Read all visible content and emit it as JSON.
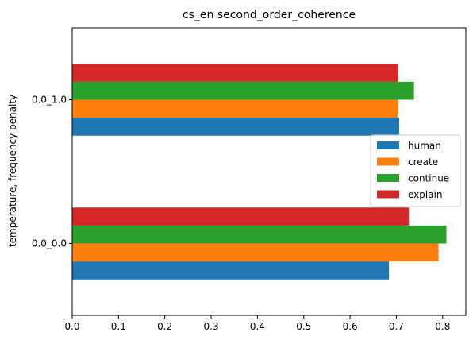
{
  "chart_data": {
    "type": "bar",
    "orientation": "horizontal",
    "title": "cs_en second_order_coherence",
    "xlabel": "",
    "ylabel": "temperature, frequency penalty",
    "categories": [
      "0.0_0.0",
      "0.0_1.0"
    ],
    "series": [
      {
        "name": "human",
        "color": "#1f77b4",
        "values": [
          0.684,
          0.706
        ]
      },
      {
        "name": "create",
        "color": "#ff7f0e",
        "values": [
          0.791,
          0.704
        ]
      },
      {
        "name": "continue",
        "color": "#2ca02c",
        "values": [
          0.808,
          0.738
        ]
      },
      {
        "name": "explain",
        "color": "#d62728",
        "values": [
          0.727,
          0.704
        ]
      }
    ],
    "xlim": [
      0,
      0.85
    ],
    "xticks": [
      "0.0",
      "0.1",
      "0.2",
      "0.3",
      "0.4",
      "0.5",
      "0.6",
      "0.7",
      "0.8"
    ],
    "grid": false,
    "legend_position": "center-right"
  }
}
